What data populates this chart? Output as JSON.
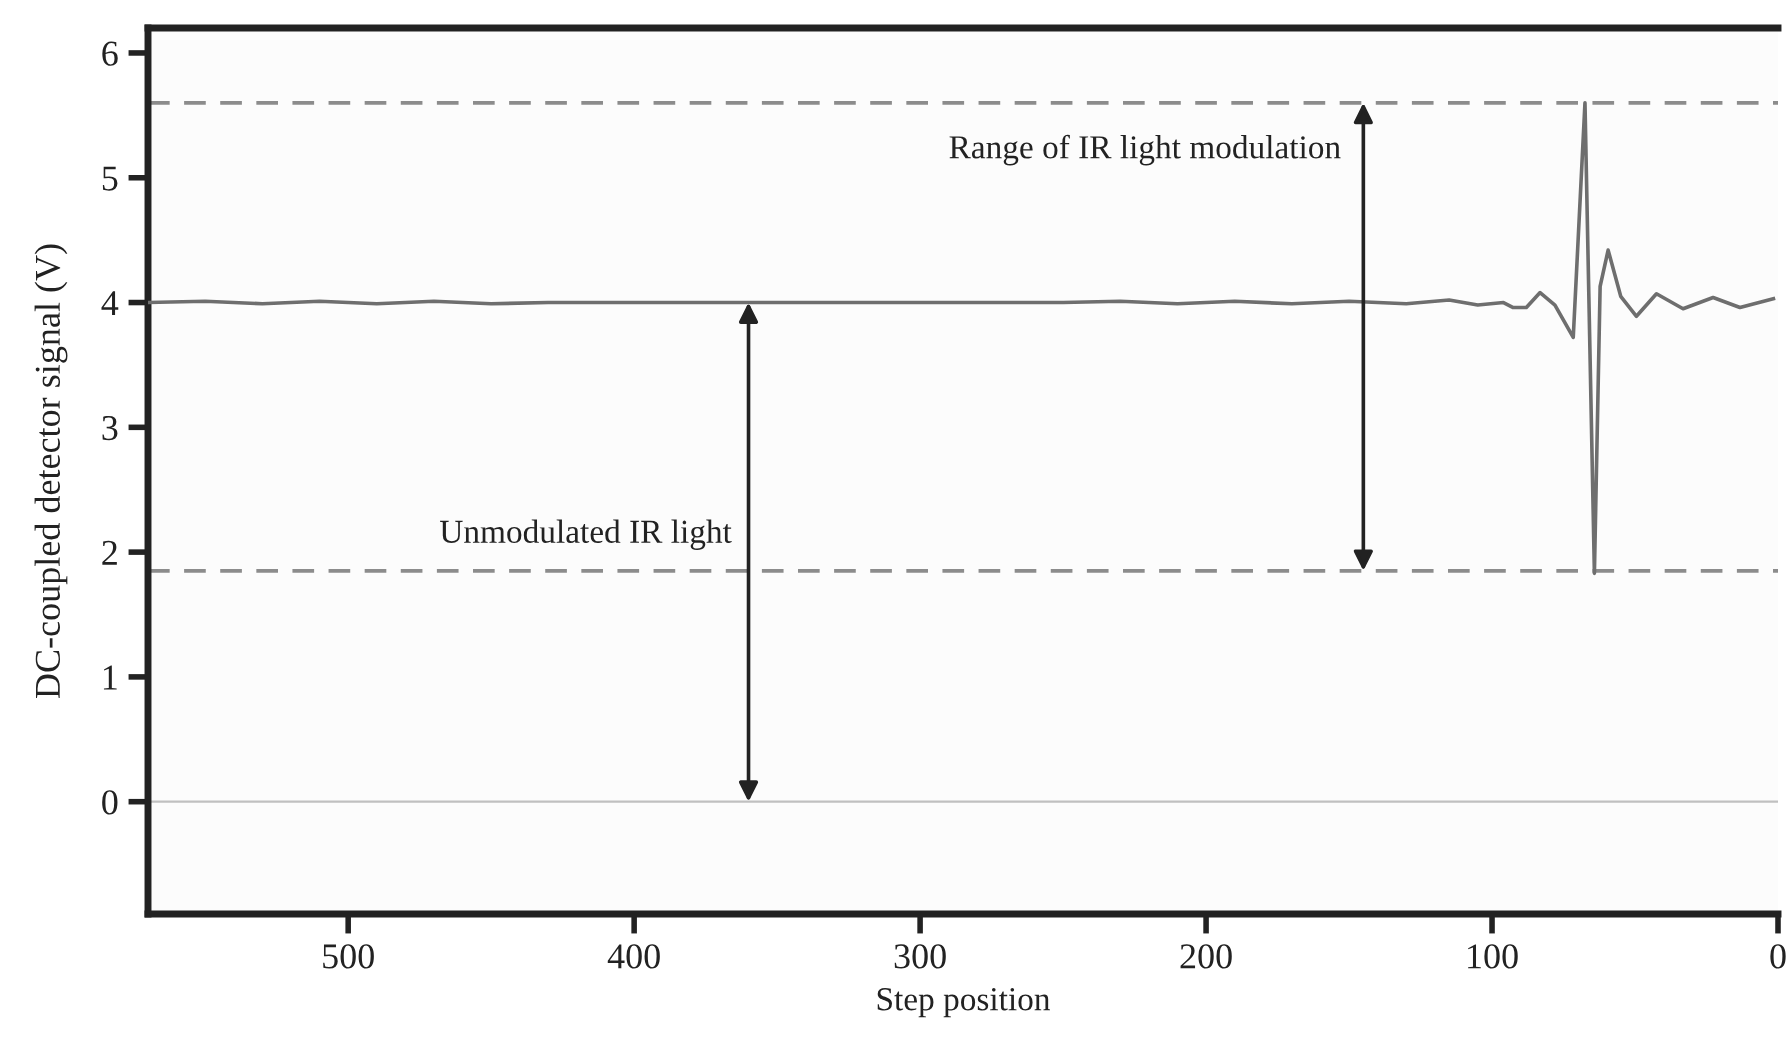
{
  "chart_data": {
    "type": "line",
    "xlabel": "Step position",
    "ylabel": "DC-coupled detector signal (V)",
    "xlim": [
      570,
      0
    ],
    "xticks": [
      500,
      400,
      300,
      200,
      100,
      0
    ],
    "ylim": [
      -0.9,
      6.2
    ],
    "yticks": [
      0,
      1,
      2,
      3,
      4,
      5,
      6
    ],
    "grid": false,
    "legend": false,
    "series": [
      {
        "color": "#6e6e6e",
        "x": [
          570,
          550,
          530,
          510,
          490,
          470,
          450,
          430,
          410,
          390,
          370,
          350,
          330,
          310,
          290,
          270,
          250,
          230,
          210,
          190,
          170,
          150,
          130,
          115,
          105,
          96,
          92.6,
          88,
          83.2,
          78,
          71.6,
          67.5,
          64.2,
          62.2,
          59.4,
          55,
          49.5,
          42.5,
          33.2,
          22.7,
          13.3,
          1.6
        ],
        "values": [
          4.0,
          4.01,
          3.99,
          4.01,
          3.99,
          4.01,
          3.99,
          4.0,
          4.0,
          4.0,
          4.0,
          4.0,
          4.0,
          4.0,
          4.0,
          4.0,
          4.0,
          4.01,
          3.99,
          4.01,
          3.99,
          4.01,
          3.99,
          4.02,
          3.98,
          4.0,
          3.96,
          3.96,
          4.08,
          3.98,
          3.72,
          5.6,
          1.83,
          4.13,
          4.42,
          4.05,
          3.89,
          4.07,
          3.95,
          4.04,
          3.96,
          4.03
        ]
      }
    ],
    "ref_lines": [
      {
        "axis": "y",
        "value": 5.6,
        "color": "#8c8c8c",
        "line_style": "dashed"
      },
      {
        "axis": "y",
        "value": 1.85,
        "color": "#8c8c8c",
        "line_style": "dashed"
      },
      {
        "axis": "y",
        "value": 0,
        "color": "#c0c0c0",
        "line_style": "solid"
      }
    ],
    "annotations": [
      {
        "text": "Range of IR light modulation",
        "x": 145,
        "y": 5.6
      },
      {
        "text": "Unmodulated IR light",
        "x": 360,
        "y": 1.85
      }
    ]
  }
}
